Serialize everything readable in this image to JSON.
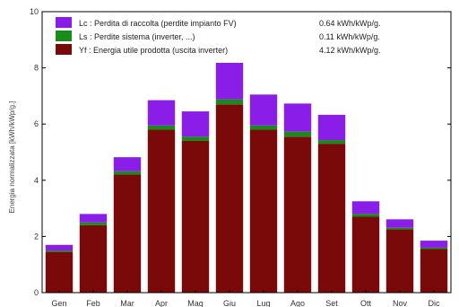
{
  "chart_data": {
    "type": "bar",
    "stacked": true,
    "ylabel": "Energia   normalizzata   [kWh/kWp/g.]",
    "ylim": [
      0,
      10
    ],
    "yticks": [
      0,
      2,
      4,
      6,
      8,
      10
    ],
    "grid": false,
    "legend_position": "top-left",
    "categories": [
      "Gen",
      "Feb",
      "Mar",
      "Apr",
      "Mag",
      "Giu",
      "Lug",
      "Ago",
      "Set",
      "Ott",
      "Nov",
      "Dic"
    ],
    "series": [
      {
        "name": "Yf : Energia utile prodotta  (uscita inverter)",
        "summary": "4.12 kWh/kWp/g.",
        "color": "#7a0a0a",
        "values": [
          1.45,
          2.4,
          4.2,
          5.8,
          5.4,
          6.7,
          5.8,
          5.55,
          5.3,
          2.7,
          2.25,
          1.55
        ]
      },
      {
        "name": "Ls : Perdite sistema  (inverter, ...)",
        "summary": "0.11 kWh/kWp/g.",
        "color": "#1a8a1a",
        "values": [
          0.05,
          0.1,
          0.12,
          0.15,
          0.15,
          0.18,
          0.15,
          0.18,
          0.13,
          0.1,
          0.06,
          0.05
        ]
      },
      {
        "name": "Lc : Perdita di raccolta  (perdite impianto FV)",
        "summary": "0.64 kWh/kWp/g.",
        "color": "#8a1ee8",
        "values": [
          0.2,
          0.3,
          0.5,
          0.9,
          0.9,
          1.3,
          1.1,
          1.0,
          0.9,
          0.45,
          0.3,
          0.25
        ]
      }
    ]
  }
}
